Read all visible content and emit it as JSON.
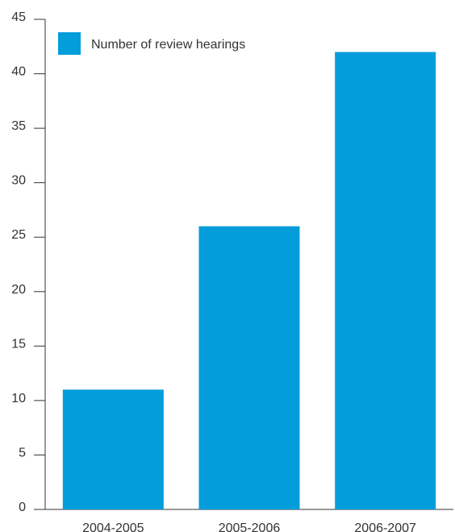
{
  "chart_data": {
    "type": "bar",
    "categories": [
      "2004-2005",
      "2005-2006",
      "2006-2007"
    ],
    "series": [
      {
        "name": "Number of review hearings",
        "values": [
          11,
          26,
          42
        ]
      }
    ],
    "title": "",
    "xlabel": "",
    "ylabel": "",
    "ylim": [
      0,
      45
    ],
    "yticks": [
      0,
      5,
      10,
      15,
      20,
      25,
      30,
      35,
      40,
      45
    ],
    "grid": false,
    "legend_position": "top-left",
    "colors": {
      "bar": "#049ddb",
      "axis": "#333333",
      "text": "#333333"
    }
  }
}
